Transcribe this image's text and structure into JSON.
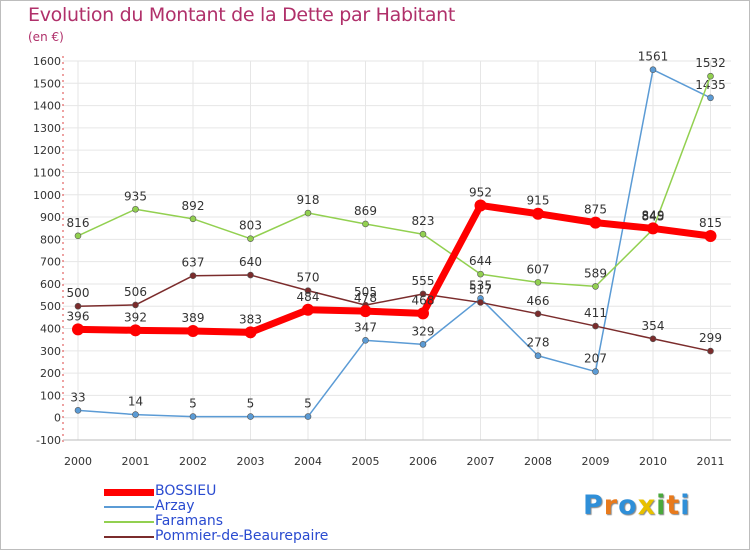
{
  "title": "Evolution du Montant de la Dette par Habitant",
  "unit": "(en €)",
  "logo": {
    "letters": [
      "P",
      "r",
      "o",
      "x",
      "i",
      "t",
      "i"
    ],
    "colors": [
      "#2f8fd8",
      "#e87a1c",
      "#2f8fd8",
      "#e8c000",
      "#4aa83c",
      "#e87a1c",
      "#2f8fd8"
    ]
  },
  "chart_data": {
    "type": "line",
    "x": [
      "2000",
      "2001",
      "2002",
      "2003",
      "2004",
      "2005",
      "2006",
      "2007",
      "2008",
      "2009",
      "2010",
      "2011"
    ],
    "ylim": [
      -100,
      1600
    ],
    "yticks": [
      "-100",
      "0",
      "100",
      "200",
      "300",
      "400",
      "500",
      "600",
      "700",
      "800",
      "900",
      "1000",
      "1100",
      "1200",
      "1300",
      "1400",
      "1500",
      "1600"
    ],
    "grid": true,
    "legend_position": "bottom-left",
    "series": [
      {
        "name": "Arzay",
        "color": "#5b9bd5",
        "values": [
          33,
          14,
          5,
          5,
          5,
          347,
          329,
          535,
          278,
          207,
          1561,
          1435
        ]
      },
      {
        "name": "Faramans",
        "color": "#92d050",
        "values": [
          816,
          935,
          892,
          803,
          918,
          869,
          823,
          644,
          607,
          589,
          845,
          1532
        ]
      },
      {
        "name": "Pommier-de-Beaurepaire",
        "color": "#7b2c2c",
        "values": [
          500,
          506,
          637,
          640,
          570,
          505,
          555,
          517,
          466,
          411,
          354,
          299
        ]
      },
      {
        "name": "BOSSIEU",
        "color": "#ff0000",
        "values": [
          396,
          392,
          389,
          383,
          484,
          478,
          468,
          952,
          915,
          875,
          849,
          815
        ]
      }
    ]
  }
}
